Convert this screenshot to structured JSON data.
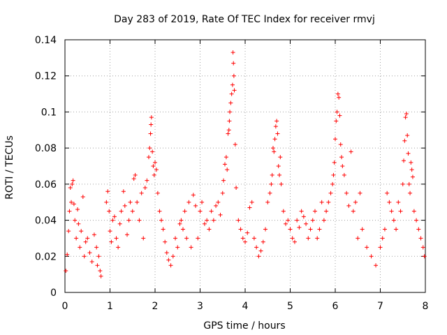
{
  "chart_data": {
    "type": "scatter",
    "title": "Day 283 of 2019, Rate Of TEC Index for receiver rmvj",
    "xlabel": "GPS time / hours",
    "ylabel": "ROTI / TECUs",
    "xlim": [
      0,
      8
    ],
    "ylim": [
      0,
      0.14
    ],
    "x_ticks": [
      0,
      1,
      2,
      3,
      4,
      5,
      6,
      7,
      8
    ],
    "y_ticks": [
      0,
      0.02,
      0.04,
      0.06,
      0.08,
      0.1,
      0.12,
      0.14
    ],
    "x_tick_labels": [
      "0",
      "1",
      "2",
      "3",
      "4",
      "5",
      "6",
      "7",
      "8"
    ],
    "y_tick_labels": [
      "0",
      "0.02",
      "0.04",
      "0.06",
      "0.08",
      "0.1",
      "0.12",
      "0.14"
    ],
    "grid": true,
    "marker": "+",
    "marker_color": "#ff0000",
    "series": [
      {
        "name": "ROTI",
        "points": [
          [
            0.02,
            0.012
          ],
          [
            0.05,
            0.021
          ],
          [
            0.08,
            0.034
          ],
          [
            0.1,
            0.045
          ],
          [
            0.12,
            0.058
          ],
          [
            0.14,
            0.05
          ],
          [
            0.16,
            0.06
          ],
          [
            0.18,
            0.062
          ],
          [
            0.2,
            0.049
          ],
          [
            0.22,
            0.04
          ],
          [
            0.25,
            0.03
          ],
          [
            0.28,
            0.046
          ],
          [
            0.3,
            0.038
          ],
          [
            0.33,
            0.025
          ],
          [
            0.36,
            0.034
          ],
          [
            0.4,
            0.053
          ],
          [
            0.43,
            0.02
          ],
          [
            0.46,
            0.028
          ],
          [
            0.5,
            0.03
          ],
          [
            0.55,
            0.022
          ],
          [
            0.6,
            0.017
          ],
          [
            0.65,
            0.032
          ],
          [
            0.7,
            0.025
          ],
          [
            0.72,
            0.015
          ],
          [
            0.75,
            0.02
          ],
          [
            0.78,
            0.012
          ],
          [
            0.8,
            0.009
          ],
          [
            0.92,
            0.05
          ],
          [
            0.95,
            0.056
          ],
          [
            0.98,
            0.045
          ],
          [
            1.0,
            0.034
          ],
          [
            1.03,
            0.028
          ],
          [
            1.06,
            0.04
          ],
          [
            1.1,
            0.042
          ],
          [
            1.14,
            0.03
          ],
          [
            1.18,
            0.025
          ],
          [
            1.22,
            0.038
          ],
          [
            1.25,
            0.045
          ],
          [
            1.3,
            0.056
          ],
          [
            1.33,
            0.048
          ],
          [
            1.38,
            0.032
          ],
          [
            1.42,
            0.04
          ],
          [
            1.45,
            0.05
          ],
          [
            1.5,
            0.045
          ],
          [
            1.53,
            0.063
          ],
          [
            1.56,
            0.065
          ],
          [
            1.6,
            0.05
          ],
          [
            1.65,
            0.04
          ],
          [
            1.7,
            0.055
          ],
          [
            1.74,
            0.03
          ],
          [
            1.78,
            0.058
          ],
          [
            1.82,
            0.062
          ],
          [
            1.86,
            0.075
          ],
          [
            1.88,
            0.08
          ],
          [
            1.9,
            0.088
          ],
          [
            1.91,
            0.093
          ],
          [
            1.92,
            0.097
          ],
          [
            1.94,
            0.078
          ],
          [
            1.96,
            0.07
          ],
          [
            1.98,
            0.065
          ],
          [
            2.0,
            0.072
          ],
          [
            2.03,
            0.068
          ],
          [
            2.06,
            0.055
          ],
          [
            2.1,
            0.045
          ],
          [
            2.14,
            0.04
          ],
          [
            2.18,
            0.035
          ],
          [
            2.22,
            0.028
          ],
          [
            2.26,
            0.022
          ],
          [
            2.3,
            0.018
          ],
          [
            2.35,
            0.015
          ],
          [
            2.4,
            0.02
          ],
          [
            2.45,
            0.03
          ],
          [
            2.5,
            0.025
          ],
          [
            2.55,
            0.038
          ],
          [
            2.58,
            0.04
          ],
          [
            2.62,
            0.035
          ],
          [
            2.66,
            0.045
          ],
          [
            2.7,
            0.03
          ],
          [
            2.75,
            0.05
          ],
          [
            2.8,
            0.025
          ],
          [
            2.85,
            0.054
          ],
          [
            2.9,
            0.048
          ],
          [
            2.95,
            0.03
          ],
          [
            3.0,
            0.045
          ],
          [
            3.04,
            0.05
          ],
          [
            3.1,
            0.038
          ],
          [
            3.15,
            0.04
          ],
          [
            3.2,
            0.035
          ],
          [
            3.25,
            0.045
          ],
          [
            3.3,
            0.04
          ],
          [
            3.35,
            0.048
          ],
          [
            3.4,
            0.05
          ],
          [
            3.45,
            0.043
          ],
          [
            3.5,
            0.055
          ],
          [
            3.52,
            0.062
          ],
          [
            3.55,
            0.071
          ],
          [
            3.58,
            0.075
          ],
          [
            3.6,
            0.068
          ],
          [
            3.62,
            0.088
          ],
          [
            3.64,
            0.09
          ],
          [
            3.65,
            0.095
          ],
          [
            3.66,
            0.1
          ],
          [
            3.68,
            0.105
          ],
          [
            3.7,
            0.11
          ],
          [
            3.72,
            0.115
          ],
          [
            3.73,
            0.133
          ],
          [
            3.74,
            0.127
          ],
          [
            3.75,
            0.12
          ],
          [
            3.76,
            0.112
          ],
          [
            3.78,
            0.082
          ],
          [
            3.8,
            0.058
          ],
          [
            3.85,
            0.04
          ],
          [
            3.9,
            0.035
          ],
          [
            3.95,
            0.03
          ],
          [
            4.0,
            0.028
          ],
          [
            4.05,
            0.033
          ],
          [
            4.1,
            0.047
          ],
          [
            4.15,
            0.05
          ],
          [
            4.2,
            0.03
          ],
          [
            4.25,
            0.025
          ],
          [
            4.3,
            0.02
          ],
          [
            4.35,
            0.023
          ],
          [
            4.4,
            0.028
          ],
          [
            4.45,
            0.035
          ],
          [
            4.5,
            0.05
          ],
          [
            4.55,
            0.055
          ],
          [
            4.58,
            0.06
          ],
          [
            4.6,
            0.065
          ],
          [
            4.62,
            0.08
          ],
          [
            4.64,
            0.078
          ],
          [
            4.66,
            0.085
          ],
          [
            4.68,
            0.092
          ],
          [
            4.7,
            0.095
          ],
          [
            4.72,
            0.088
          ],
          [
            4.74,
            0.07
          ],
          [
            4.76,
            0.065
          ],
          [
            4.78,
            0.075
          ],
          [
            4.8,
            0.06
          ],
          [
            4.85,
            0.045
          ],
          [
            4.9,
            0.038
          ],
          [
            4.95,
            0.04
          ],
          [
            5.0,
            0.035
          ],
          [
            5.05,
            0.03
          ],
          [
            5.1,
            0.028
          ],
          [
            5.15,
            0.04
          ],
          [
            5.2,
            0.036
          ],
          [
            5.25,
            0.045
          ],
          [
            5.3,
            0.042
          ],
          [
            5.35,
            0.038
          ],
          [
            5.4,
            0.03
          ],
          [
            5.45,
            0.035
          ],
          [
            5.5,
            0.04
          ],
          [
            5.55,
            0.045
          ],
          [
            5.6,
            0.03
          ],
          [
            5.65,
            0.035
          ],
          [
            5.7,
            0.05
          ],
          [
            5.75,
            0.04
          ],
          [
            5.8,
            0.045
          ],
          [
            5.85,
            0.05
          ],
          [
            5.9,
            0.055
          ],
          [
            5.94,
            0.06
          ],
          [
            5.96,
            0.065
          ],
          [
            5.98,
            0.072
          ],
          [
            6.0,
            0.085
          ],
          [
            6.02,
            0.095
          ],
          [
            6.04,
            0.1
          ],
          [
            6.06,
            0.11
          ],
          [
            6.08,
            0.108
          ],
          [
            6.1,
            0.098
          ],
          [
            6.12,
            0.082
          ],
          [
            6.14,
            0.075
          ],
          [
            6.16,
            0.07
          ],
          [
            6.2,
            0.065
          ],
          [
            6.25,
            0.055
          ],
          [
            6.3,
            0.048
          ],
          [
            6.35,
            0.078
          ],
          [
            6.4,
            0.045
          ],
          [
            6.45,
            0.05
          ],
          [
            6.5,
            0.03
          ],
          [
            6.55,
            0.055
          ],
          [
            6.6,
            0.035
          ],
          [
            6.7,
            0.025
          ],
          [
            6.8,
            0.02
          ],
          [
            6.9,
            0.015
          ],
          [
            7.0,
            0.025
          ],
          [
            7.05,
            0.03
          ],
          [
            7.1,
            0.035
          ],
          [
            7.15,
            0.055
          ],
          [
            7.2,
            0.05
          ],
          [
            7.25,
            0.045
          ],
          [
            7.3,
            0.04
          ],
          [
            7.35,
            0.035
          ],
          [
            7.4,
            0.05
          ],
          [
            7.45,
            0.045
          ],
          [
            7.5,
            0.06
          ],
          [
            7.52,
            0.073
          ],
          [
            7.54,
            0.084
          ],
          [
            7.56,
            0.097
          ],
          [
            7.58,
            0.099
          ],
          [
            7.6,
            0.087
          ],
          [
            7.62,
            0.077
          ],
          [
            7.64,
            0.06
          ],
          [
            7.66,
            0.055
          ],
          [
            7.68,
            0.072
          ],
          [
            7.7,
            0.068
          ],
          [
            7.72,
            0.064
          ],
          [
            7.75,
            0.045
          ],
          [
            7.8,
            0.04
          ],
          [
            7.85,
            0.035
          ],
          [
            7.9,
            0.03
          ],
          [
            7.95,
            0.025
          ],
          [
            7.98,
            0.02
          ]
        ]
      }
    ]
  }
}
